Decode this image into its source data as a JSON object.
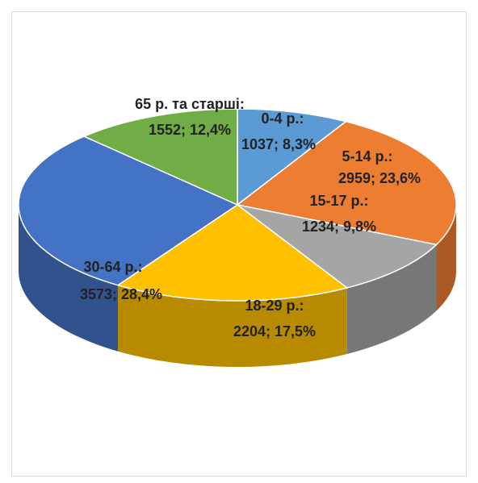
{
  "chart_data": {
    "type": "pie3d",
    "categories": [
      "0-4 р.:",
      "5-14 р.:",
      "15-17 р.:",
      "18-29 р.:",
      "30-64 р.:",
      "65 р. та старші:"
    ],
    "values": [
      1037,
      2959,
      1234,
      2204,
      3573,
      1552
    ],
    "value_labels": [
      "1037; 8,3%",
      "2959; 23,6%",
      "1234; 9,8%",
      "2204; 17,5%",
      "3573; 28,4%",
      "1552; 12,4%"
    ],
    "colors": [
      "#5b9bd5",
      "#ed7d31",
      "#a5a5a5",
      "#ffc000",
      "#4472c4",
      "#70ad47"
    ]
  }
}
